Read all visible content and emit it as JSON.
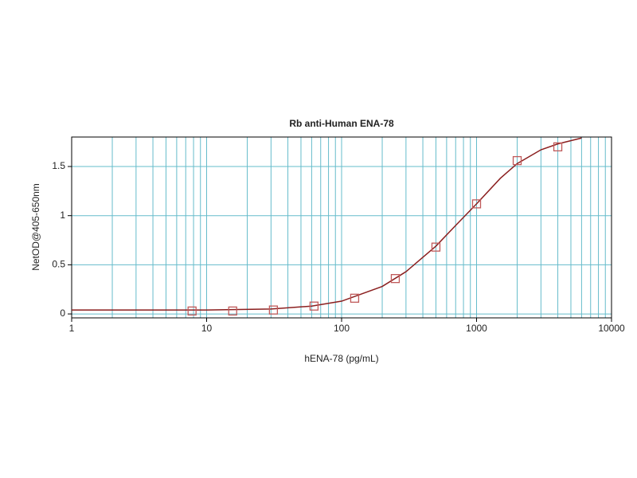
{
  "chart_data": {
    "type": "scatter",
    "title": "Rb anti-Human ENA-78",
    "x_label": "hENA-78 (pg/mL)",
    "y_label": "NetOD@405-650nm",
    "x_scale": "log",
    "grid": true,
    "xlim": [
      1,
      10000
    ],
    "xticks": [
      1,
      10,
      100,
      1000,
      10000
    ],
    "ylim": [
      -0.04,
      1.8
    ],
    "yticks": [
      0,
      0.5,
      1,
      1.5
    ],
    "series": [
      {
        "color": "#c05a5a",
        "marker": "square",
        "x": [
          7.8,
          15.6,
          31.25,
          62.5,
          125,
          250,
          500,
          1000,
          2000,
          4000
        ],
        "values": [
          0.03,
          0.03,
          0.04,
          0.08,
          0.16,
          0.36,
          0.68,
          1.12,
          1.56,
          1.7
        ]
      },
      {
        "color": "#8b1f1f",
        "marker": "line",
        "x": [
          1,
          10,
          30,
          60,
          100,
          200,
          300,
          500,
          700,
          1000,
          1500,
          2000,
          3000,
          4000,
          6000
        ],
        "values": [
          0.04,
          0.04,
          0.05,
          0.08,
          0.13,
          0.28,
          0.43,
          0.69,
          0.9,
          1.12,
          1.38,
          1.53,
          1.67,
          1.73,
          1.79
        ]
      }
    ]
  }
}
